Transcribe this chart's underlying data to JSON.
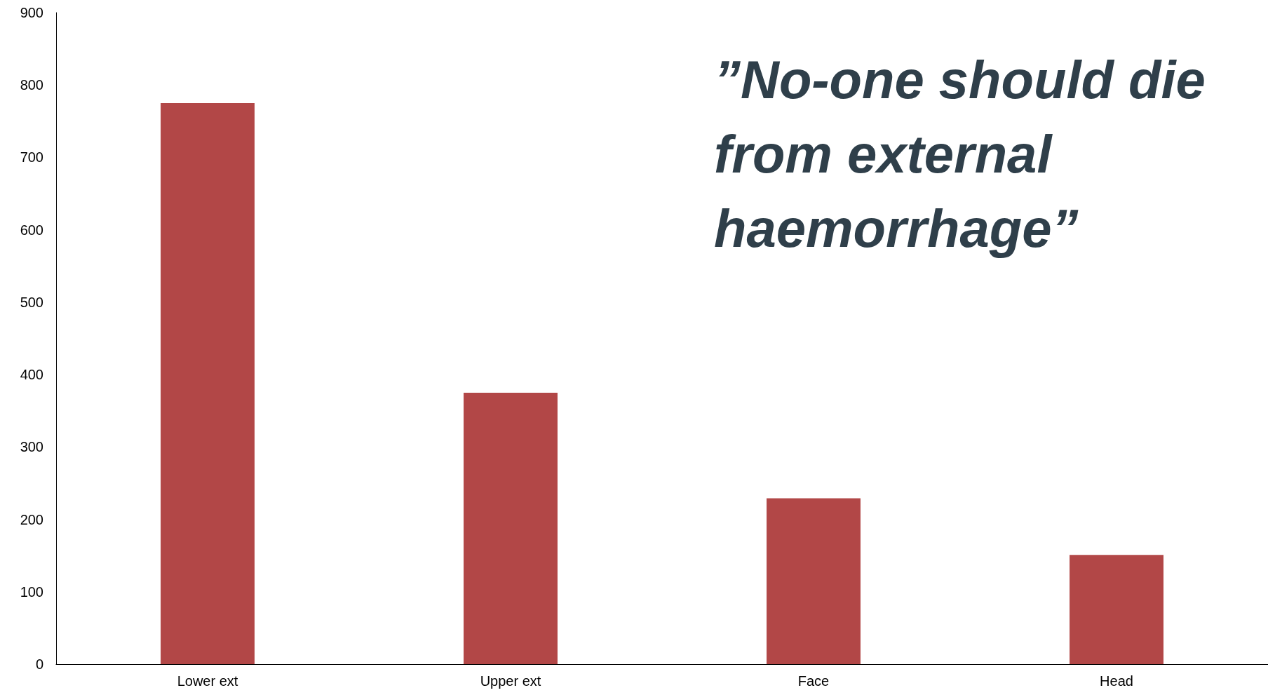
{
  "chart_data": {
    "type": "bar",
    "categories": [
      "Lower ext",
      "Upper ext",
      "Face",
      "Head"
    ],
    "values": [
      775,
      375,
      229,
      151
    ],
    "color": "#b24747",
    "ylim": [
      0,
      900
    ],
    "yticks": [
      0,
      100,
      200,
      300,
      400,
      500,
      600,
      700,
      800,
      900
    ],
    "grid": false,
    "annotations": [
      "”No-one should die from external haemorrhage”"
    ]
  }
}
